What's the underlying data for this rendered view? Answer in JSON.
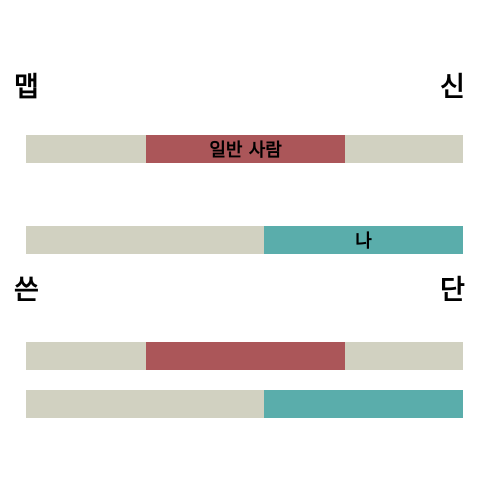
{
  "labels": {
    "top_left": "맵",
    "top_right": "신",
    "bottom_left": "쓴",
    "bottom_right": "단"
  },
  "colors": {
    "track": "#d1d1c1",
    "red": "#ab5659",
    "teal": "#5aadab"
  },
  "bars": [
    {
      "id": "average-person-spicy",
      "label": "일반 사람",
      "start": 0.275,
      "end": 0.73,
      "color": "#ab5659"
    },
    {
      "id": "me-sour",
      "label": "나",
      "start": 0.545,
      "end": 1.0,
      "color": "#5aadab"
    },
    {
      "id": "average-person-bitter",
      "label": "",
      "start": 0.275,
      "end": 0.73,
      "color": "#ab5659"
    },
    {
      "id": "me-sweet",
      "label": "",
      "start": 0.545,
      "end": 1.0,
      "color": "#5aadab"
    }
  ]
}
